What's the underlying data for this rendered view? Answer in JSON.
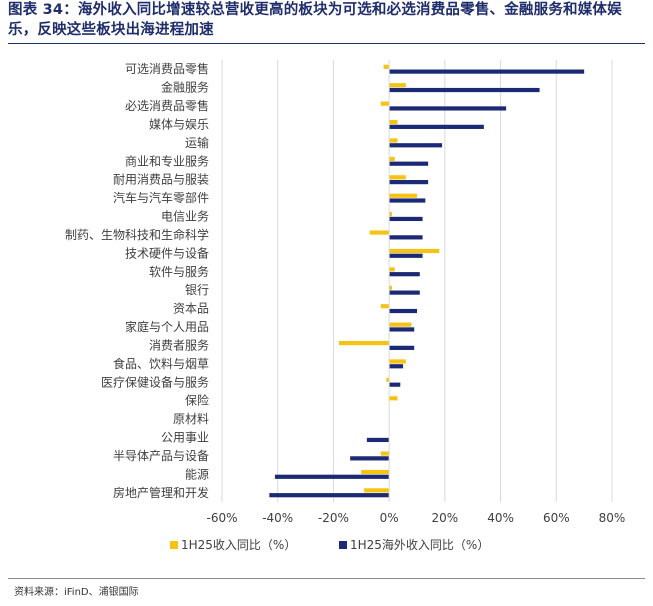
{
  "figure": {
    "title": "图表 34：海外收入同比增速较总营收更高的板块为可选和必选消费品零售、金融服务和媒体娱乐，反映这些板块出海进程加速",
    "source": "资料来源：iFinD、浦银国际"
  },
  "chart_data": {
    "type": "bar",
    "orientation": "horizontal",
    "categories": [
      "可选消费品零售",
      "金融服务",
      "必选消费品零售",
      "媒体与娱乐",
      "运输",
      "商业和专业服务",
      "耐用消费品与服装",
      "汽车与汽车零部件",
      "电信业务",
      "制药、生物科技和生命科学",
      "技术硬件与设备",
      "软件与服务",
      "银行",
      "资本品",
      "家庭与个人用品",
      "消费者服务",
      "食品、饮料与烟草",
      "医疗保健设备与服务",
      "保险",
      "原材料",
      "公用事业",
      "半导体产品与设备",
      "能源",
      "房地产管理和开发"
    ],
    "series": [
      {
        "name": "1H25收入同比（%）",
        "color": "#f5c314",
        "values": [
          -2,
          6,
          -3,
          3,
          3,
          2,
          6,
          10,
          1,
          -7,
          18,
          2,
          1,
          -3,
          8,
          -18,
          6,
          -1,
          3,
          0,
          0,
          -3,
          -10,
          -9
        ]
      },
      {
        "name": "1H25海外收入同比（%）",
        "color": "#1c2a75",
        "values": [
          70,
          54,
          42,
          34,
          19,
          14,
          14,
          13,
          12,
          12,
          12,
          11,
          11,
          10,
          9,
          9,
          5,
          4,
          0,
          0,
          -8,
          -14,
          -41,
          -43
        ]
      }
    ],
    "xlim": [
      -60,
      80
    ],
    "xticks": [
      -60,
      -40,
      -20,
      0,
      20,
      40,
      60,
      80
    ],
    "tick_labels": [
      "-60%",
      "-40%",
      "-20%",
      "0%",
      "20%",
      "40%",
      "60%",
      "80%"
    ],
    "grid": true,
    "legend": "bottom"
  }
}
